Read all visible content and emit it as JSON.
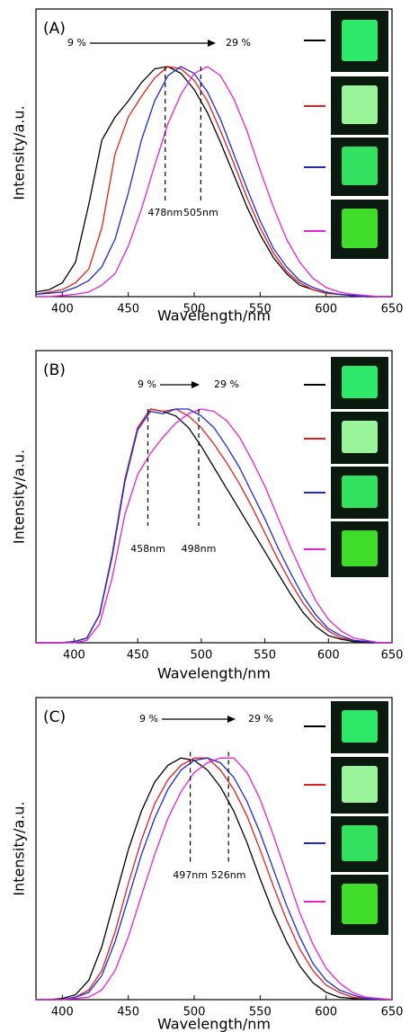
{
  "chart_data": [
    {
      "type": "line",
      "title": "(A)",
      "x_label": "Wavelength/nm",
      "y_label": "Intensity/a.u.",
      "xlim": [
        380,
        650
      ],
      "ylim": [
        0,
        1.25
      ],
      "xticks": [
        400,
        450,
        500,
        550,
        600,
        650
      ],
      "arrow_start_label": "9 %",
      "arrow_end_label": "29 %",
      "markers": [
        {
          "x": 478,
          "label": "478nm"
        },
        {
          "x": 505,
          "label": "505nm"
        }
      ],
      "x": [
        380,
        390,
        400,
        410,
        420,
        430,
        440,
        450,
        460,
        470,
        480,
        490,
        500,
        510,
        520,
        530,
        540,
        550,
        560,
        570,
        580,
        590,
        600,
        610,
        620,
        630,
        640,
        650
      ],
      "series": [
        {
          "color": "#000000",
          "values": [
            0.02,
            0.03,
            0.06,
            0.15,
            0.4,
            0.68,
            0.78,
            0.85,
            0.93,
            0.99,
            1.0,
            0.97,
            0.9,
            0.8,
            0.67,
            0.53,
            0.39,
            0.27,
            0.17,
            0.1,
            0.05,
            0.03,
            0.015,
            0.01,
            0.005,
            0,
            0,
            0
          ]
        },
        {
          "color": "#e0201c",
          "values": [
            0.01,
            0.02,
            0.03,
            0.06,
            0.12,
            0.3,
            0.62,
            0.78,
            0.87,
            0.95,
            1.0,
            0.99,
            0.94,
            0.85,
            0.72,
            0.58,
            0.43,
            0.3,
            0.19,
            0.11,
            0.06,
            0.03,
            0.015,
            0.01,
            0.005,
            0,
            0,
            0
          ]
        },
        {
          "color": "#1a2ad6",
          "values": [
            0.01,
            0.015,
            0.02,
            0.04,
            0.07,
            0.13,
            0.25,
            0.45,
            0.68,
            0.85,
            0.96,
            1.0,
            0.97,
            0.89,
            0.77,
            0.62,
            0.47,
            0.33,
            0.21,
            0.13,
            0.07,
            0.04,
            0.02,
            0.01,
            0.005,
            0,
            0,
            0
          ]
        },
        {
          "color": "#e520d8",
          "values": [
            0,
            0,
            0.005,
            0.01,
            0.02,
            0.05,
            0.1,
            0.22,
            0.38,
            0.57,
            0.75,
            0.88,
            0.97,
            1.0,
            0.96,
            0.86,
            0.72,
            0.55,
            0.39,
            0.25,
            0.15,
            0.08,
            0.04,
            0.02,
            0.01,
            0.005,
            0,
            0
          ]
        }
      ]
    },
    {
      "type": "line",
      "title": "(B)",
      "x_label": "Wavelength/nm",
      "y_label": "Intensity/a.u.",
      "xlim": [
        370,
        650
      ],
      "ylim": [
        0,
        1.25
      ],
      "xticks": [
        400,
        450,
        500,
        550,
        600,
        650
      ],
      "arrow_start_label": "9 %",
      "arrow_end_label": "29 %",
      "markers": [
        {
          "x": 458,
          "label": "458nm"
        },
        {
          "x": 498,
          "label": "498nm"
        }
      ],
      "x": [
        370,
        380,
        390,
        400,
        410,
        420,
        430,
        440,
        450,
        460,
        470,
        480,
        490,
        500,
        510,
        520,
        530,
        540,
        550,
        560,
        570,
        580,
        590,
        600,
        610,
        620,
        630,
        640,
        650
      ],
      "series": [
        {
          "color": "#000000",
          "values": [
            0,
            0,
            0,
            0.005,
            0.02,
            0.12,
            0.38,
            0.7,
            0.92,
            1.0,
            0.99,
            0.97,
            0.92,
            0.84,
            0.75,
            0.66,
            0.57,
            0.48,
            0.39,
            0.3,
            0.21,
            0.13,
            0.07,
            0.03,
            0.015,
            0.005,
            0,
            0,
            0
          ]
        },
        {
          "color": "#e0201c",
          "values": [
            0,
            0,
            0,
            0.005,
            0.02,
            0.12,
            0.38,
            0.7,
            0.92,
            1.0,
            0.99,
            1.0,
            0.97,
            0.92,
            0.85,
            0.77,
            0.68,
            0.58,
            0.47,
            0.36,
            0.26,
            0.17,
            0.1,
            0.05,
            0.02,
            0.01,
            0.005,
            0,
            0
          ]
        },
        {
          "color": "#1a2ad6",
          "values": [
            0,
            0,
            0,
            0.005,
            0.02,
            0.12,
            0.37,
            0.69,
            0.91,
            0.99,
            0.98,
            1.0,
            1.0,
            0.97,
            0.92,
            0.84,
            0.75,
            0.64,
            0.53,
            0.41,
            0.3,
            0.2,
            0.12,
            0.06,
            0.03,
            0.01,
            0.005,
            0,
            0
          ]
        },
        {
          "color": "#e520d8",
          "values": [
            0,
            0,
            0,
            0,
            0.01,
            0.08,
            0.28,
            0.55,
            0.72,
            0.81,
            0.88,
            0.94,
            0.98,
            1.0,
            0.99,
            0.95,
            0.88,
            0.78,
            0.67,
            0.54,
            0.41,
            0.29,
            0.18,
            0.1,
            0.05,
            0.02,
            0.01,
            0,
            0
          ]
        }
      ]
    },
    {
      "type": "line",
      "title": "(C)",
      "x_label": "Wavelength/nm",
      "y_label": "Intensity/a.u.",
      "xlim": [
        380,
        650
      ],
      "ylim": [
        0,
        1.25
      ],
      "xticks": [
        400,
        450,
        500,
        550,
        600,
        650
      ],
      "arrow_start_label": "9 %",
      "arrow_end_label": "29 %",
      "markers": [
        {
          "x": 497,
          "label": "497nm"
        },
        {
          "x": 526,
          "label": "526nm"
        }
      ],
      "x": [
        380,
        390,
        400,
        410,
        420,
        430,
        440,
        450,
        460,
        470,
        480,
        490,
        500,
        510,
        520,
        530,
        540,
        550,
        560,
        570,
        580,
        590,
        600,
        610,
        620,
        630,
        640,
        650
      ],
      "series": [
        {
          "color": "#000000",
          "values": [
            0,
            0,
            0.005,
            0.02,
            0.08,
            0.22,
            0.42,
            0.62,
            0.78,
            0.9,
            0.97,
            1.0,
            0.99,
            0.95,
            0.88,
            0.78,
            0.65,
            0.5,
            0.36,
            0.24,
            0.14,
            0.07,
            0.03,
            0.01,
            0.005,
            0,
            0,
            0
          ]
        },
        {
          "color": "#e0201c",
          "values": [
            0,
            0,
            0,
            0.01,
            0.04,
            0.12,
            0.28,
            0.48,
            0.66,
            0.81,
            0.91,
            0.97,
            1.0,
            1.0,
            0.95,
            0.87,
            0.76,
            0.62,
            0.47,
            0.33,
            0.21,
            0.12,
            0.06,
            0.03,
            0.01,
            0.005,
            0,
            0
          ]
        },
        {
          "color": "#1a2ad6",
          "values": [
            0,
            0,
            0,
            0.01,
            0.03,
            0.1,
            0.24,
            0.42,
            0.6,
            0.75,
            0.87,
            0.95,
            0.99,
            1.0,
            0.98,
            0.92,
            0.82,
            0.69,
            0.54,
            0.39,
            0.26,
            0.15,
            0.08,
            0.04,
            0.02,
            0.005,
            0,
            0
          ]
        },
        {
          "color": "#e520d8",
          "values": [
            0,
            0,
            0,
            0.005,
            0.01,
            0.04,
            0.12,
            0.26,
            0.43,
            0.6,
            0.75,
            0.86,
            0.94,
            0.98,
            1.0,
            1.0,
            0.94,
            0.83,
            0.68,
            0.52,
            0.36,
            0.23,
            0.13,
            0.07,
            0.03,
            0.01,
            0.005,
            0
          ]
        }
      ]
    }
  ]
}
